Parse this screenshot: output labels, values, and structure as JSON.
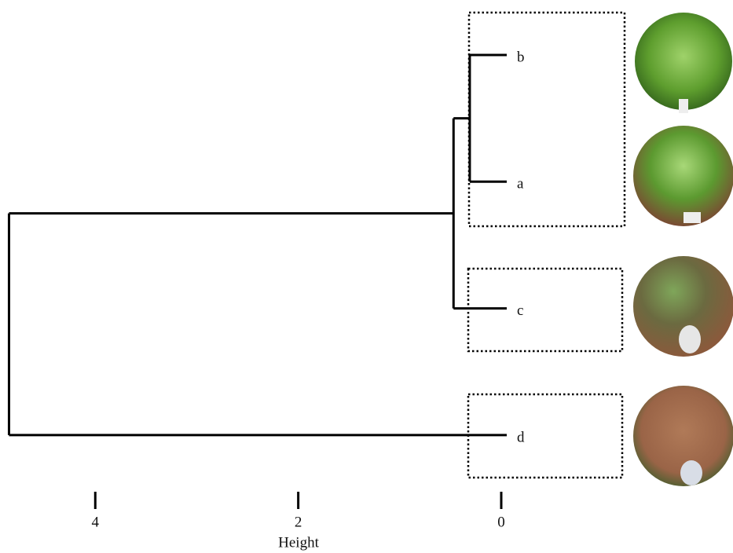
{
  "chart_data": {
    "type": "dendrogram",
    "x_label": "Height",
    "leaves": [
      "b",
      "a",
      "c",
      "d"
    ],
    "merge_heights": [
      0.31,
      0.47,
      4.85
    ],
    "xlim": [
      4.9,
      0
    ],
    "xticks": [
      4,
      2,
      0
    ],
    "color": "#000000"
  }
}
